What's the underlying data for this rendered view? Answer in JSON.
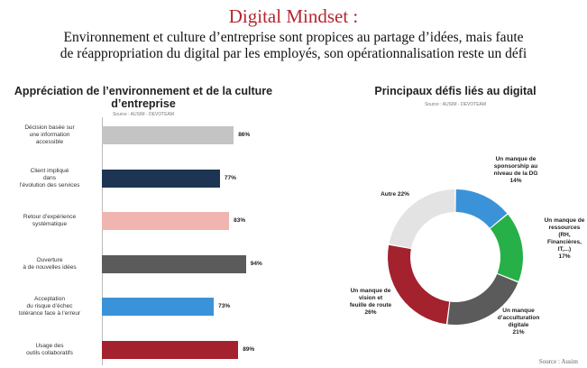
{
  "header": {
    "title": "Digital Mindset :",
    "subtitle_line1": "Environnement et culture d’entreprise sont propices au partage d’idées, mais faute",
    "subtitle_line2": "de réappropriation du digital par les employés, son opérationnalisation reste un défi"
  },
  "footer_source": "Source : Ausim",
  "chart_data": [
    {
      "type": "bar",
      "orientation": "horizontal",
      "title": "Appréciation de l’environnement et de la culture d’entreprise",
      "source": "Source : AUSIM - DEVOTEAM",
      "categories": [
        "Décision basée sur une information accessible",
        "Client impliqué dans l’évolution des services",
        "Retour d’expérience systématique",
        "Ouverture à de nouvelles idées",
        "Acceptation du risque d’échec tolérance face à l’erreur",
        "Usage des outils collaboratifs"
      ],
      "category_lines": [
        [
          "Décision basée sur",
          "une information",
          "accessible"
        ],
        [
          "Client impliqué",
          "dans",
          "l’évolution des services"
        ],
        [
          "Retour d’expérience",
          "systématique"
        ],
        [
          "Ouverture",
          "à de nouvelles idées"
        ],
        [
          "Acceptation",
          "du risque d’échec",
          "tolérance face à l’erreur"
        ],
        [
          "Usage des",
          "outils collaboratifs"
        ]
      ],
      "values": [
        86,
        77,
        83,
        94,
        73,
        89
      ],
      "value_labels": [
        "86%",
        "77%",
        "83%",
        "94%",
        "73%",
        "89%"
      ],
      "colors": [
        "#c4c4c4",
        "#1d3553",
        "#f0b5b0",
        "#5b5b5b",
        "#3a93d8",
        "#a3222d"
      ],
      "xlim": [
        0,
        100
      ]
    },
    {
      "type": "pie",
      "style": "donut",
      "title": "Principaux défis liés au digital",
      "source": "Source : AUSIM - DEVOTEAM",
      "slices": [
        {
          "label": "Un manque de sponsorship au niveau de la DG",
          "value": 14,
          "value_label": "14%",
          "color": "#3a93d8",
          "lines": [
            "Un manque de",
            "sponsorship au",
            "niveau de la DG",
            "14%"
          ]
        },
        {
          "label": "Un manque de ressources (RH, Financières, IT,...)",
          "value": 17,
          "value_label": "17%",
          "color": "#27b048",
          "lines": [
            "Un manque de",
            "ressources",
            "(RH,",
            "Financières,",
            "IT,...)",
            "17%"
          ]
        },
        {
          "label": "Un manque d’acculturation digitale",
          "value": 21,
          "value_label": "21%",
          "color": "#5b5b5b",
          "lines": [
            "Un manque",
            "d’acculturation",
            "digitale",
            "21%"
          ]
        },
        {
          "label": "Un manque de vision et feuille de route",
          "value": 26,
          "value_label": "26%",
          "color": "#a3222d",
          "lines": [
            "Un manque de",
            "vision et",
            "feuille de route",
            "26%"
          ]
        },
        {
          "label": "Autre",
          "value": 22,
          "value_label": "22%",
          "color": "#e3e3e3",
          "lines": [
            "Autre 22%"
          ]
        }
      ]
    }
  ]
}
